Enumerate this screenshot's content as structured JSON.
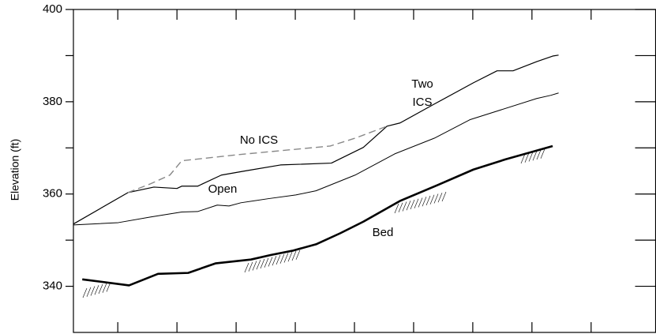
{
  "chart_data": {
    "type": "line",
    "y_label": "Elevation (ft)",
    "xlim": [
      0.25,
      10.09
    ],
    "xticks": [
      1,
      2,
      3,
      4,
      5,
      6,
      7,
      8,
      9
    ],
    "ylim": [
      330,
      400
    ],
    "yticks": [
      340,
      360,
      380,
      400
    ],
    "yminorticks": [
      350,
      370,
      390
    ],
    "series": [
      {
        "name": "Two ICS",
        "color": "#000000",
        "style": "solid",
        "width": 1.2,
        "x": [
          0.25,
          1.17,
          1.61,
          2.0,
          2.08,
          2.35,
          2.75,
          3.15,
          3.75,
          4.61,
          5.15,
          5.55,
          5.77,
          6.35,
          7.01,
          7.41,
          7.68,
          8.08,
          8.35,
          8.45
        ],
        "values": [
          353.5,
          360.3,
          361.5,
          361.2,
          361.7,
          361.7,
          364.1,
          365.0,
          366.3,
          366.7,
          370.1,
          374.7,
          375.4,
          379.5,
          384.1,
          386.7,
          386.7,
          388.7,
          389.9,
          390.1
        ]
      },
      {
        "name": "No ICS",
        "color": "#888888",
        "style": "dashed",
        "width": 1.4,
        "x": [
          1.17,
          1.55,
          1.88,
          2.08,
          3.01,
          4.59,
          5.01,
          5.55
        ],
        "values": [
          360.3,
          362.2,
          364.1,
          367.2,
          368.5,
          370.4,
          372.1,
          374.7
        ]
      },
      {
        "name": "Open",
        "color": "#000000",
        "style": "solid",
        "width": 1,
        "x": [
          0.25,
          1.01,
          1.55,
          2.08,
          2.35,
          2.68,
          2.88,
          3.08,
          3.55,
          4.01,
          4.35,
          5.01,
          5.68,
          6.35,
          6.95,
          8.08,
          8.32,
          8.45
        ],
        "values": [
          353.3,
          353.8,
          355.0,
          356.1,
          356.2,
          357.6,
          357.4,
          358.1,
          359.0,
          359.8,
          360.7,
          364.1,
          368.7,
          372.1,
          376.1,
          380.7,
          381.4,
          381.9
        ]
      },
      {
        "name": "Bed",
        "color": "#000000",
        "style": "solid",
        "width": 2.6,
        "x": [
          0.4,
          1.19,
          1.68,
          2.19,
          2.65,
          3.25,
          3.59,
          3.95,
          4.35,
          4.76,
          5.15,
          5.77,
          6.4,
          7.01,
          7.55,
          8.35
        ],
        "values": [
          341.5,
          340.2,
          342.7,
          342.9,
          344.96,
          345.8,
          346.8,
          347.7,
          349.1,
          351.5,
          354.0,
          358.5,
          361.9,
          365.3,
          367.5,
          370.4
        ]
      }
    ]
  }
}
